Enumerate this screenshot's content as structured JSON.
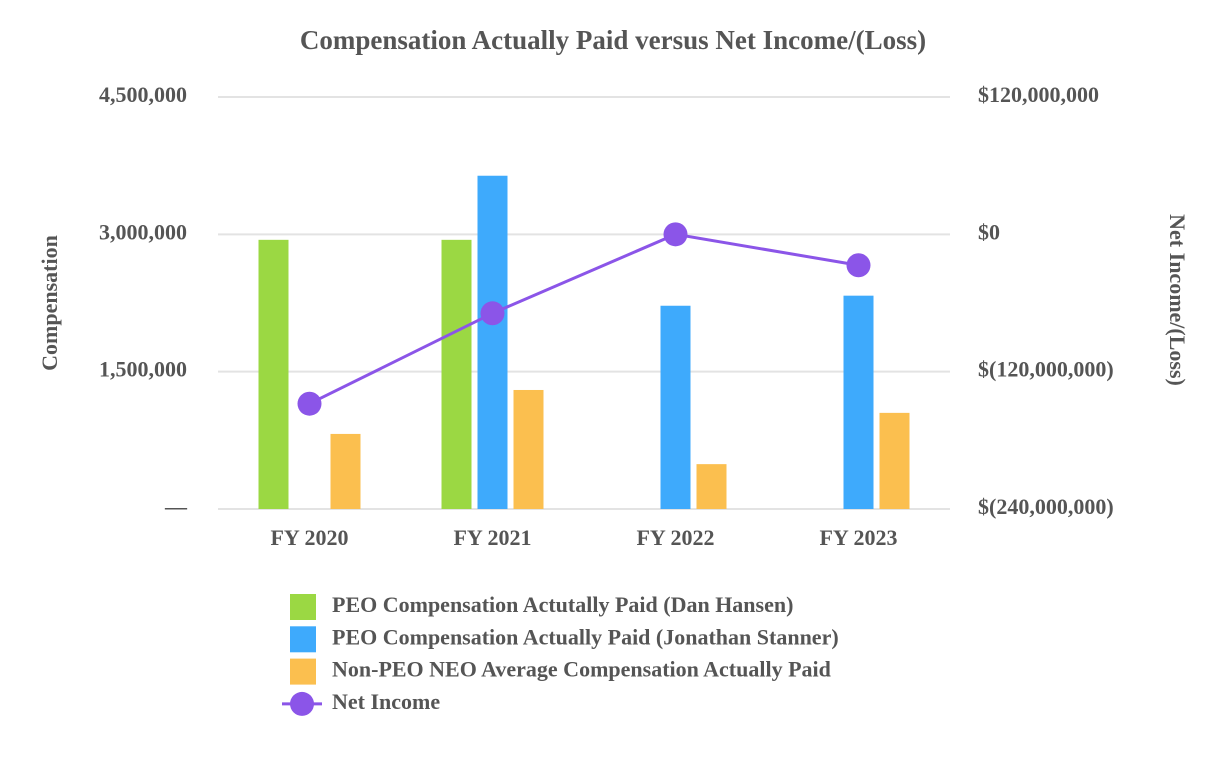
{
  "chart_data": {
    "type": "bar",
    "title": "Compensation Actually Paid versus Net Income/(Loss)",
    "ylabel": "Compensation",
    "y2label": "Net Income/(Loss)",
    "categories": [
      "FY 2020",
      "FY 2021",
      "FY 2022",
      "FY 2023"
    ],
    "series": [
      {
        "name": "PEO Compensation Actutally Paid (Dan Hansen)",
        "color": "#9bd843",
        "values": [
          2940000,
          2940000,
          null,
          null
        ]
      },
      {
        "name": "PEO Compensation Actually Paid (Jonathan Stanner)",
        "color": "#3eaafc",
        "values": [
          null,
          3640000,
          2220000,
          2330000
        ]
      },
      {
        "name": "Non-PEO NEO Average Compensation Actually Paid",
        "color": "#fbbf4f",
        "values": [
          820000,
          1300000,
          490000,
          1050000
        ]
      },
      {
        "name": "Net Income",
        "color": "#8b55e8",
        "type": "line",
        "axis": "y2",
        "values": [
          -148000000,
          -69000000,
          0,
          -27000000
        ]
      }
    ],
    "ylim": [
      0,
      4500000
    ],
    "yticks": [
      {
        "value": 0,
        "label": "—"
      },
      {
        "value": 1500000,
        "label": "1,500,000"
      },
      {
        "value": 3000000,
        "label": "3,000,000"
      },
      {
        "value": 4500000,
        "label": "4,500,000"
      }
    ],
    "y2lim": [
      -240000000,
      120000000
    ],
    "y2ticks": [
      {
        "value": -240000000,
        "label": "$(240,000,000)"
      },
      {
        "value": -120000000,
        "label": "$(120,000,000)"
      },
      {
        "value": 0,
        "label": "$0"
      },
      {
        "value": 120000000,
        "label": "$120,000,000"
      }
    ],
    "grid": true,
    "legend": "bottom"
  }
}
